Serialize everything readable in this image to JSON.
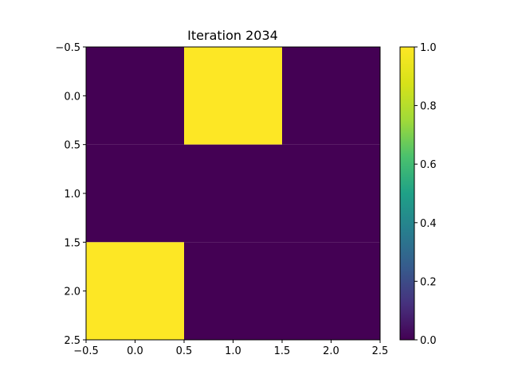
{
  "chart_data": [
    {
      "type": "heatmap",
      "title": "Iteration 2034",
      "xlabel": "",
      "ylabel": "",
      "x_centers": [
        0,
        1,
        2
      ],
      "y_centers": [
        0,
        1,
        2
      ],
      "xlim": [
        -0.5,
        2.5
      ],
      "ylim": [
        2.5,
        -0.5
      ],
      "xticks": [
        -0.5,
        0.0,
        0.5,
        1.0,
        1.5,
        2.0,
        2.5
      ],
      "xtick_labels": [
        "−0.5",
        "0.0",
        "0.5",
        "1.0",
        "1.5",
        "2.0",
        "2.5"
      ],
      "yticks": [
        -0.5,
        0.0,
        0.5,
        1.0,
        1.5,
        2.0,
        2.5
      ],
      "ytick_labels": [
        "−0.5",
        "0.0",
        "0.5",
        "1.0",
        "1.5",
        "2.0",
        "2.5"
      ],
      "values": [
        [
          0,
          1,
          0
        ],
        [
          0,
          0,
          0
        ],
        [
          1,
          0,
          0
        ]
      ],
      "grid": false,
      "colormap": "viridis",
      "colors": {
        "low": "#440154",
        "high": "#fde725"
      },
      "colorbar": {
        "range": [
          0,
          1
        ],
        "ticks": [
          0.0,
          0.2,
          0.4,
          0.6,
          0.8,
          1.0
        ],
        "tick_labels": [
          "0.0",
          "0.2",
          "0.4",
          "0.6",
          "0.8",
          "1.0"
        ]
      }
    }
  ]
}
